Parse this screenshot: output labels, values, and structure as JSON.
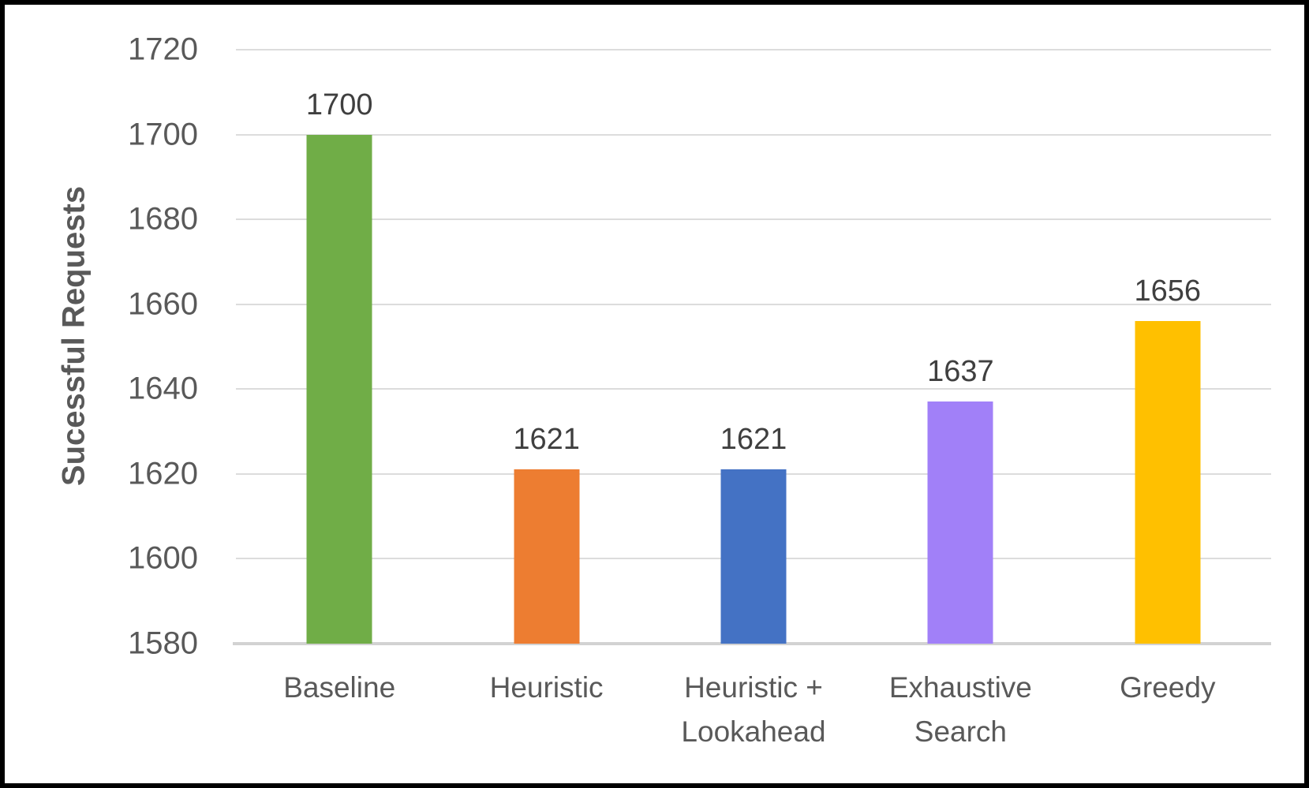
{
  "chart_data": {
    "type": "bar",
    "title": "",
    "xlabel": "",
    "ylabel": "Sucessful Requests",
    "categories": [
      "Baseline",
      "Heuristic",
      "Heuristic +\nLookahead",
      "Exhaustive\nSearch",
      "Greedy"
    ],
    "values": [
      1700,
      1621,
      1621,
      1637,
      1656
    ],
    "data_labels": [
      "1700",
      "1621",
      "1621",
      "1637",
      "1656"
    ],
    "bar_colors": [
      "#70AD47",
      "#ED7D31",
      "#4472C4",
      "#A180F8",
      "#FFC000"
    ],
    "yticks": [
      1580,
      1600,
      1620,
      1640,
      1660,
      1680,
      1700,
      1720
    ],
    "ylim": [
      1580,
      1720
    ],
    "grid": "horizontal",
    "legend": "none"
  },
  "colors": {
    "text_axis": "#595959",
    "text_data_label": "#3f3f3f",
    "gridline": "#dcdcdc",
    "axis_line": "#d2d2d2",
    "background": "#ffffff",
    "border": "#000000"
  }
}
